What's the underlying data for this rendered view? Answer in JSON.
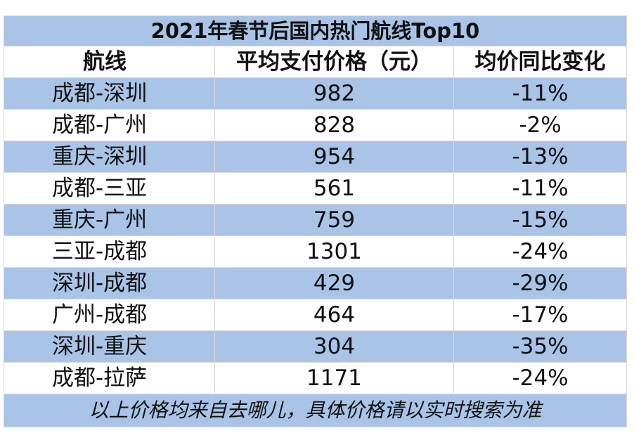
{
  "table": {
    "title": "2021年春节后国内热门航线Top10",
    "header": [
      "航线",
      "平均支付价格（元）",
      "均价同比变化"
    ],
    "rows": [
      [
        "成都-深圳",
        982,
        "-11%"
      ],
      [
        "成都-广州",
        828,
        "-2%"
      ],
      [
        "重庆-深圳",
        954,
        "-13%"
      ],
      [
        "成都-三亚",
        561,
        "-11%"
      ],
      [
        "重庆-广州",
        759,
        "-15%"
      ],
      [
        "三亚-成都",
        1301,
        "-24%"
      ],
      [
        "深圳-成都",
        429,
        "-29%"
      ],
      [
        "广州-成都",
        464,
        "-17%"
      ],
      [
        "深圳-重庆",
        304,
        "-35%"
      ],
      [
        "成都-拉萨",
        1171,
        "-24%"
      ]
    ],
    "footnote": "以上价格均来自去哪儿，具体价格请以实时搜索为准"
  }
}
